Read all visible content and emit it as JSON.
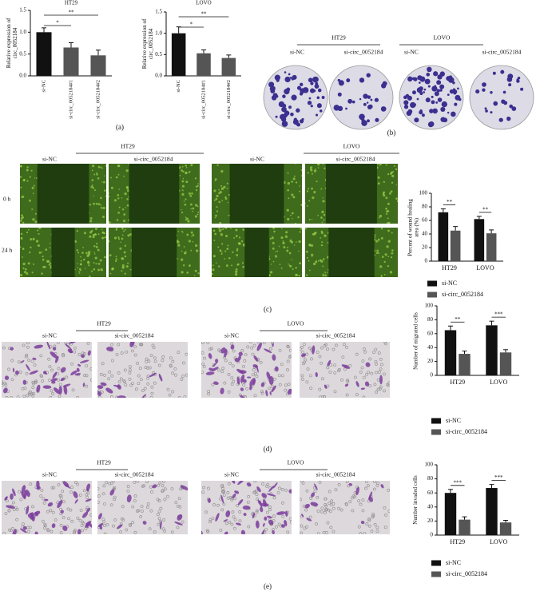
{
  "chart_data": [
    {
      "type": "bar",
      "title": "HT29",
      "ylabel": "Relative expression of circ_0052184",
      "categories": [
        "si-NC",
        "si-circ_0052184#1",
        "si-circ_0052184#2"
      ],
      "values": [
        1.0,
        0.65,
        0.47
      ],
      "errors": [
        0.1,
        0.11,
        0.12
      ],
      "colors": [
        "#111111",
        "#555555",
        "#555555"
      ],
      "ylim": [
        0,
        1.5
      ],
      "yticks": [
        {
          "value": 0,
          "label": "0.0"
        },
        {
          "value": 0.5,
          "label": "0.5"
        },
        {
          "value": 1,
          "label": "1.0"
        },
        {
          "value": 1.5,
          "label": "1.5"
        }
      ],
      "annotations": [
        "*",
        "**"
      ]
    },
    {
      "type": "bar",
      "title": "LOVO",
      "ylabel": "Relative expression of circ_0052184",
      "categories": [
        "si-NC",
        "si-circ_0052184#1",
        "si-circ_0052184#2"
      ],
      "values": [
        1.0,
        0.53,
        0.42
      ],
      "errors": [
        0.15,
        0.08,
        0.07
      ],
      "colors": [
        "#111111",
        "#555555",
        "#555555"
      ],
      "ylim": [
        0,
        1.5
      ],
      "yticks": [
        {
          "value": 0,
          "label": "0.0"
        },
        {
          "value": 0.5,
          "label": "0.5"
        },
        {
          "value": 1,
          "label": "1.0"
        },
        {
          "value": 1.5,
          "label": "1.5"
        }
      ],
      "annotations": [
        "*",
        "**"
      ]
    },
    {
      "type": "grouped-bar",
      "ylabel": "Percent of wound healing area (%)",
      "categories": [
        "HT29",
        "LOVO"
      ],
      "series": [
        {
          "name": "si-NC",
          "color": "#111111",
          "values": [
            72,
            62
          ],
          "errors": [
            5,
            4
          ]
        },
        {
          "name": "si-circ_0052184",
          "color": "#555555",
          "values": [
            45,
            41
          ],
          "errors": [
            6,
            5
          ]
        }
      ],
      "ylim": [
        0,
        100
      ],
      "yticks": [
        0,
        20,
        40,
        60,
        80,
        100
      ],
      "annotations": [
        "**",
        "**"
      ]
    },
    {
      "type": "grouped-bar",
      "ylabel": "Number of migrated cells",
      "categories": [
        "HT29",
        "LOVO"
      ],
      "series": [
        {
          "name": "si-NC",
          "color": "#111111",
          "values": [
            65,
            72
          ],
          "errors": [
            6,
            6
          ]
        },
        {
          "name": "si-circ_0052184",
          "color": "#555555",
          "values": [
            31,
            33
          ],
          "errors": [
            4,
            4
          ]
        }
      ],
      "ylim": [
        0,
        100
      ],
      "yticks": [
        0,
        20,
        40,
        60,
        80,
        100
      ],
      "annotations": [
        "**",
        "***"
      ]
    },
    {
      "type": "grouped-bar",
      "ylabel": "Number invaded cells",
      "categories": [
        "HT29",
        "LOVO"
      ],
      "series": [
        {
          "name": "si-NC",
          "color": "#111111",
          "values": [
            60,
            67
          ],
          "errors": [
            5,
            5
          ]
        },
        {
          "name": "si-circ_0052184",
          "color": "#555555",
          "values": [
            22,
            18
          ],
          "errors": [
            4,
            3
          ]
        }
      ],
      "ylim": [
        0,
        100
      ],
      "yticks": [
        0,
        20,
        40,
        60,
        80,
        100
      ],
      "annotations": [
        "***",
        "***"
      ]
    }
  ],
  "panels": {
    "a": {
      "label": "(a)"
    },
    "b": {
      "label": "(b)",
      "groups": [
        {
          "title": "HT29",
          "conditions": [
            "si-NC",
            "si-circ_0052184"
          ]
        },
        {
          "title": "LOVO",
          "conditions": [
            "si-NC",
            "si-circ_0052184"
          ]
        }
      ]
    },
    "c": {
      "label": "(c)",
      "groups": [
        {
          "title": "HT29",
          "conditions": [
            "si-NC",
            "si-circ_0052184"
          ]
        },
        {
          "title": "LOVO",
          "conditions": [
            "si-NC",
            "si-circ_0052184"
          ]
        }
      ],
      "rows": [
        "0 h",
        "24 h"
      ]
    },
    "d": {
      "label": "(d)",
      "groups": [
        {
          "title": "HT29",
          "conditions": [
            "si-NC",
            "si-circ_0052184"
          ]
        },
        {
          "title": "LOVO",
          "conditions": [
            "si-NC",
            "si-circ_0052184"
          ]
        }
      ]
    },
    "e": {
      "label": "(e)",
      "groups": [
        {
          "title": "HT29",
          "conditions": [
            "si-NC",
            "si-circ_0052184"
          ]
        },
        {
          "title": "LOVO",
          "conditions": [
            "si-NC",
            "si-circ_0052184"
          ]
        }
      ]
    }
  }
}
